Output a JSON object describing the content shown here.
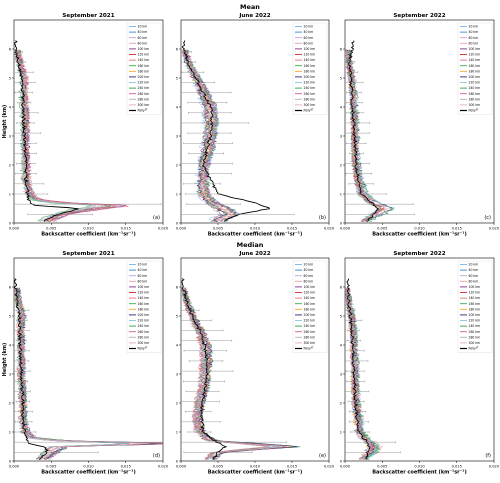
{
  "figure": {
    "row_titles": [
      "Mean",
      "Median"
    ]
  },
  "legend": {
    "entries": [
      "20 km",
      "40 km",
      "60 km",
      "80 km",
      "100 km",
      "120 km",
      "140 km",
      "160 km",
      "180 km",
      "200 km",
      "220 km",
      "240 km",
      "260 km",
      "280 km",
      "300 km",
      "Polly"
    ],
    "polly_superscript": "XT"
  },
  "colors": {
    "series": [
      "#74b6e8",
      "#3a86d6",
      "#c2a0d6",
      "#f09aaa",
      "#7e2e8a",
      "#d9232f",
      "#e5707a",
      "#39a84b",
      "#f4a52b",
      "#1e2d7a",
      "#8fc1e6",
      "#2f9e44",
      "#d05c8c",
      "#b0b0b0",
      "#e0a8c8"
    ],
    "polly": "#000000",
    "errorbar": "#808080"
  },
  "chart_data": [
    {
      "type": "line",
      "panel": "(a)",
      "title": "September 2021",
      "row": "Mean",
      "xlabel": "Backscatter coefficient (km⁻¹sr⁻¹)",
      "ylabel": "Height (km)",
      "xlim": [
        0,
        0.02
      ],
      "ylim": [
        0,
        7
      ],
      "xticks": [
        "0.000",
        "0.005",
        "0.010",
        "0.015",
        "0.020"
      ],
      "yticks": [
        "0",
        "1",
        "2",
        "3",
        "4",
        "5",
        "6"
      ],
      "height_km": [
        0.1,
        0.3,
        0.5,
        0.6,
        0.7,
        0.8,
        1.0,
        1.5,
        2.0,
        2.5,
        3.0,
        3.5,
        4.0,
        4.5,
        5.0,
        5.5,
        6.0
      ],
      "model_mean": [
        0.0045,
        0.0062,
        0.0105,
        0.0135,
        0.006,
        0.003,
        0.002,
        0.0016,
        0.0016,
        0.0015,
        0.0015,
        0.0015,
        0.0014,
        0.0013,
        0.0014,
        0.0008,
        0.0004
      ],
      "polly": [
        0.004,
        0.006,
        0.009,
        0.003,
        0.0022,
        0.002,
        0.0018,
        0.0016,
        0.0016,
        0.0015,
        0.0014,
        0.0013,
        0.0012,
        0.0012,
        0.001,
        0.0006,
        0.0002
      ],
      "letter": "(a)"
    },
    {
      "type": "line",
      "panel": "(b)",
      "title": "June 2022",
      "row": "Mean",
      "xlabel": "Backscatter coefficient (km⁻¹sr⁻¹)",
      "ylabel": "",
      "xlim": [
        0,
        0.02
      ],
      "ylim": [
        0,
        7
      ],
      "xticks": [
        "0.000",
        "0.005",
        "0.010",
        "0.015",
        "0.020"
      ],
      "yticks": [
        "0",
        "1",
        "2",
        "3",
        "4",
        "5",
        "6"
      ],
      "height_km": [
        0.1,
        0.3,
        0.5,
        0.7,
        1.0,
        1.5,
        2.0,
        2.5,
        3.0,
        3.5,
        4.0,
        4.5,
        5.0,
        5.5,
        6.0
      ],
      "model_mean": [
        0.005,
        0.0065,
        0.0055,
        0.004,
        0.003,
        0.0028,
        0.003,
        0.0035,
        0.0038,
        0.004,
        0.0038,
        0.003,
        0.002,
        0.001,
        0.0005
      ],
      "polly": [
        0.006,
        0.008,
        0.012,
        0.01,
        0.005,
        0.004,
        0.003,
        0.0035,
        0.004,
        0.0042,
        0.004,
        0.003,
        0.002,
        0.001,
        0.0004
      ],
      "letter": "(b)"
    },
    {
      "type": "line",
      "panel": "(c)",
      "title": "September 2022",
      "row": "Mean",
      "xlabel": "Backscatter coefficient (km⁻¹sr⁻¹)",
      "ylabel": "",
      "xlim": [
        0,
        0.02
      ],
      "ylim": [
        0,
        7
      ],
      "xticks": [
        "0.000",
        "0.005",
        "0.010",
        "0.015",
        "0.020"
      ],
      "yticks": [
        "0",
        "1",
        "2",
        "3",
        "4",
        "5",
        "6"
      ],
      "height_km": [
        0.1,
        0.3,
        0.5,
        0.7,
        1.0,
        1.5,
        2.0,
        2.5,
        3.0,
        3.5,
        4.0,
        4.5,
        5.0,
        5.5,
        6.0
      ],
      "model_mean": [
        0.003,
        0.0045,
        0.006,
        0.004,
        0.0025,
        0.002,
        0.0016,
        0.0015,
        0.0015,
        0.0014,
        0.0013,
        0.0012,
        0.001,
        0.0006,
        0.0003
      ],
      "polly": [
        0.003,
        0.004,
        0.0045,
        0.0035,
        0.0022,
        0.0018,
        0.0015,
        0.0014,
        0.0013,
        0.0012,
        0.001,
        0.0009,
        0.0008,
        0.0006,
        0.001
      ],
      "letter": "(c)"
    },
    {
      "type": "line",
      "panel": "(d)",
      "title": "September 2021",
      "row": "Median",
      "xlabel": "Backscatter coefficient (km⁻¹sr⁻¹)",
      "ylabel": "Height (km)",
      "xlim": [
        0,
        0.02
      ],
      "ylim": [
        0,
        7
      ],
      "xticks": [
        "0.000",
        "0.005",
        "0.010",
        "0.015",
        "0.020"
      ],
      "yticks": [
        "0",
        "1",
        "2",
        "3",
        "4",
        "5",
        "6"
      ],
      "height_km": [
        0.1,
        0.3,
        0.5,
        0.6,
        0.7,
        0.8,
        1.0,
        1.5,
        2.0,
        2.5,
        3.0,
        3.5,
        4.0,
        4.5,
        5.0,
        5.5,
        6.0
      ],
      "model_mean": [
        0.004,
        0.005,
        0.006,
        0.02,
        0.006,
        0.0025,
        0.0015,
        0.0012,
        0.0012,
        0.0011,
        0.001,
        0.001,
        0.001,
        0.0009,
        0.0011,
        0.0006,
        0.0003
      ],
      "polly": [
        0.0035,
        0.0045,
        0.004,
        0.002,
        0.0018,
        0.0016,
        0.0014,
        0.0012,
        0.0012,
        0.0011,
        0.001,
        0.0009,
        0.0008,
        0.0008,
        0.0007,
        0.0004,
        0.0002
      ],
      "letter": "(d)"
    },
    {
      "type": "line",
      "panel": "(e)",
      "title": "June 2022",
      "row": "Median",
      "xlabel": "Backscatter coefficient (km⁻¹sr⁻¹)",
      "ylabel": "",
      "xlim": [
        0,
        0.02
      ],
      "ylim": [
        0,
        7
      ],
      "xticks": [
        "0.000",
        "0.005",
        "0.010",
        "0.015",
        "0.020"
      ],
      "yticks": [
        "0",
        "1",
        "2",
        "3",
        "4",
        "5",
        "6"
      ],
      "height_km": [
        0.1,
        0.3,
        0.5,
        0.7,
        1.0,
        1.5,
        2.0,
        2.5,
        3.0,
        3.5,
        4.0,
        4.5,
        5.0,
        5.5,
        6.0
      ],
      "model_mean": [
        0.004,
        0.005,
        0.014,
        0.004,
        0.0025,
        0.0022,
        0.0025,
        0.003,
        0.0032,
        0.0034,
        0.0032,
        0.0025,
        0.0015,
        0.0008,
        0.0003
      ],
      "polly": [
        0.0045,
        0.005,
        0.006,
        0.0045,
        0.003,
        0.0028,
        0.0028,
        0.0032,
        0.0035,
        0.0035,
        0.0032,
        0.0025,
        0.0015,
        0.0008,
        0.0003
      ],
      "letter": "(e)"
    },
    {
      "type": "line",
      "panel": "(f)",
      "title": "September 2022",
      "row": "Median",
      "xlabel": "Backscatter coefficient (km⁻¹sr⁻¹)",
      "ylabel": "",
      "xlim": [
        0,
        0.02
      ],
      "ylim": [
        0,
        7
      ],
      "xticks": [
        "0.000",
        "0.005",
        "0.010",
        "0.015",
        "0.020"
      ],
      "yticks": [
        "0",
        "1",
        "2",
        "3",
        "4",
        "5",
        "6"
      ],
      "height_km": [
        0.1,
        0.3,
        0.5,
        0.7,
        1.0,
        1.5,
        2.0,
        2.5,
        3.0,
        3.5,
        4.0,
        4.5,
        5.0,
        5.5,
        6.0
      ],
      "model_mean": [
        0.0025,
        0.0035,
        0.004,
        0.003,
        0.002,
        0.0018,
        0.0015,
        0.0014,
        0.0014,
        0.0013,
        0.0012,
        0.0011,
        0.0009,
        0.0005,
        0.0002
      ],
      "polly": [
        0.0028,
        0.003,
        0.0032,
        0.0028,
        0.0018,
        0.0016,
        0.0014,
        0.0013,
        0.0012,
        0.0011,
        0.001,
        0.0009,
        0.0007,
        0.0005,
        0.0004
      ],
      "letter": "(f)"
    }
  ]
}
